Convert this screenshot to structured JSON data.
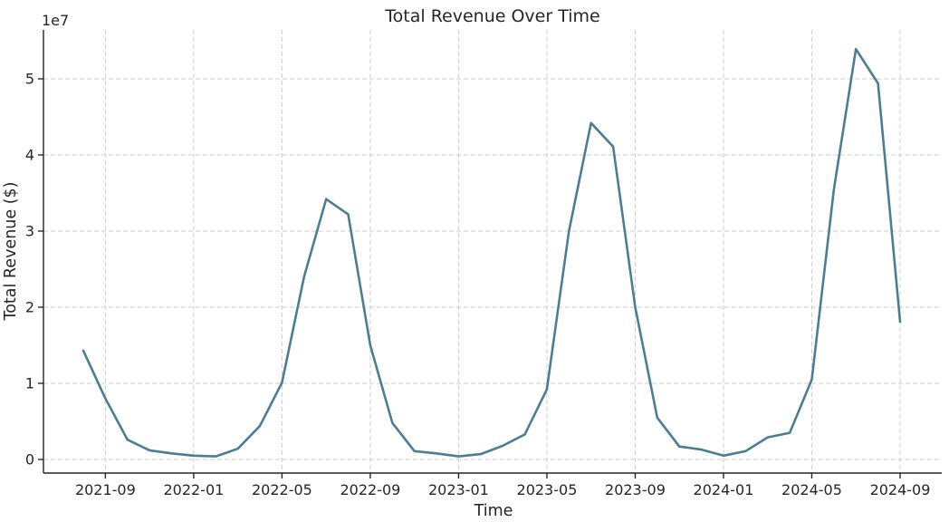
{
  "chart_data": {
    "type": "line",
    "title": "Total Revenue Over Time",
    "xlabel": "Time",
    "ylabel": "Total Revenue ($)",
    "y_offset_text": "1e7",
    "x": [
      "2021-08",
      "2021-09",
      "2021-10",
      "2021-11",
      "2021-12",
      "2022-01",
      "2022-02",
      "2022-03",
      "2022-04",
      "2022-05",
      "2022-06",
      "2022-07",
      "2022-08",
      "2022-09",
      "2022-10",
      "2022-11",
      "2022-12",
      "2023-01",
      "2023-02",
      "2023-03",
      "2023-04",
      "2023-05",
      "2023-06",
      "2023-07",
      "2023-08",
      "2023-09",
      "2023-10",
      "2023-11",
      "2023-12",
      "2024-01",
      "2024-02",
      "2024-03",
      "2024-04",
      "2024-05",
      "2024-06",
      "2024-07",
      "2024-08",
      "2024-09"
    ],
    "values": [
      14300000,
      8000000,
      2600000,
      1200000,
      800000,
      500000,
      400000,
      1400000,
      4400000,
      10100000,
      24000000,
      34200000,
      32200000,
      15000000,
      4800000,
      1100000,
      800000,
      400000,
      700000,
      1800000,
      3300000,
      9200000,
      30000000,
      44200000,
      41100000,
      20000000,
      5500000,
      1700000,
      1300000,
      500000,
      1100000,
      2900000,
      3500000,
      10500000,
      35500000,
      53900000,
      49400000,
      18100000
    ],
    "series_name": "Total Revenue",
    "x_tick_labels": [
      "2021-09",
      "2022-01",
      "2022-05",
      "2022-09",
      "2023-01",
      "2023-05",
      "2023-09",
      "2024-01",
      "2024-05",
      "2024-09"
    ],
    "y_tick_labels": [
      "0",
      "1",
      "2",
      "3",
      "4",
      "5"
    ],
    "y_ticks_1e7": [
      0,
      1,
      2,
      3,
      4,
      5
    ],
    "ylim": [
      -1800000,
      56400000
    ],
    "grid": true,
    "grid_style": "dashed",
    "legend": null,
    "colors": {
      "line": "#4a7e95",
      "grid": "#cccccc",
      "spine": "#262626",
      "text": "#262626",
      "background": "#ffffff"
    }
  }
}
